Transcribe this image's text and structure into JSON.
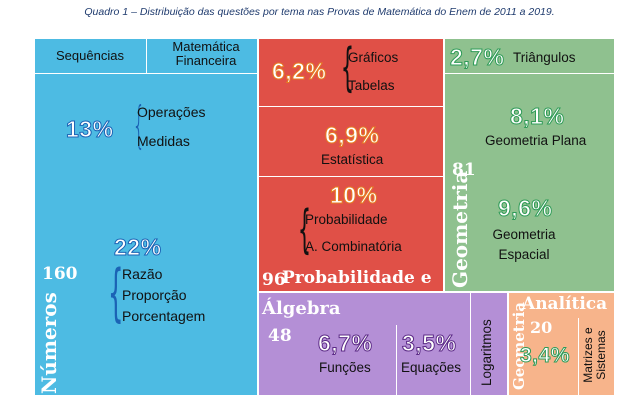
{
  "caption": "Quadro 1 – Distribuição das questões por tema nas Provas de Matemática do Enem de 2011 a 2019.",
  "colors": {
    "numeros": "#4dbbe3",
    "estatistica": "#e05047",
    "geometria": "#8fc18f",
    "algebra": "#b48fd6",
    "analitica": "#f7b48b"
  },
  "chart_data": {
    "type": "treemap",
    "title": "Quadro 1 – Distribuição das questões por tema nas Provas de Matemática do Enem de 2011 a 2019.",
    "groups": [
      {
        "name": "Números",
        "total": "160",
        "subtopics": [
          {
            "label": "Sequências"
          },
          {
            "label": "Matemática Financeira"
          },
          {
            "percent": "13%",
            "items": [
              "Operações",
              "Medidas"
            ]
          },
          {
            "percent": "22%",
            "items": [
              "Razão",
              "Proporção",
              "Porcentagem"
            ]
          }
        ]
      },
      {
        "name": "Probabilidade e Estatística",
        "total": "96",
        "subtopics": [
          {
            "percent": "6,2%",
            "items": [
              "Gráficos",
              "Tabelas"
            ]
          },
          {
            "percent": "6,9%",
            "items": [
              "Estatística"
            ]
          },
          {
            "percent": "10%",
            "items": [
              "Probabilidade",
              "A. Combinatória"
            ]
          }
        ]
      },
      {
        "name": "Geometria",
        "total": "81",
        "subtopics": [
          {
            "percent": "2,7%",
            "items": [
              "Triângulos"
            ]
          },
          {
            "percent": "8,1%",
            "items": [
              "Geometria Plana"
            ]
          },
          {
            "percent": "9,6%",
            "items": [
              "Geometria Espacial"
            ]
          }
        ]
      },
      {
        "name": "Álgebra",
        "total": "48",
        "subtopics": [
          {
            "percent": "6,7%",
            "items": [
              "Funções"
            ]
          },
          {
            "percent": "3,5%",
            "items": [
              "Equações"
            ]
          },
          {
            "items": [
              "Logaritmos"
            ]
          }
        ]
      },
      {
        "name": "Geometria Analítica",
        "total": "20",
        "subtopics": [
          {
            "percent": "3,4%"
          },
          {
            "items": [
              "Matrizes e Sistemas"
            ]
          }
        ]
      }
    ]
  }
}
